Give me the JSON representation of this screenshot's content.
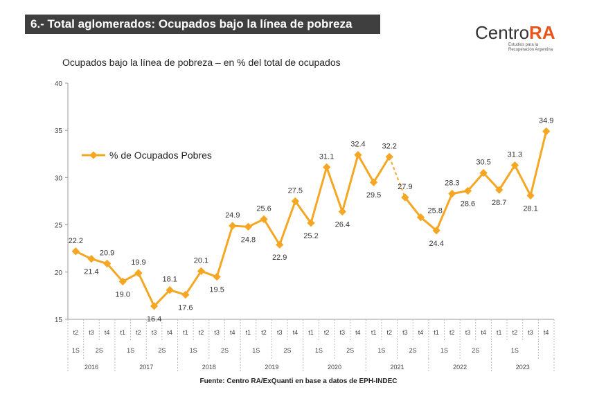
{
  "header": {
    "title": "6.- Total aglomerados: Ocupados bajo la línea de pobreza"
  },
  "logo": {
    "name_part1": "Centro",
    "name_part2": "RA",
    "tagline_line1": "Estudios para la",
    "tagline_line2": "Recuperación Argentina",
    "accent_color": "#e8551a"
  },
  "source": "Fuente: Centro RA/ExQuanti en base a datos de EPH-INDEC",
  "chart_data": {
    "type": "line",
    "title": "Ocupados bajo la línea de pobreza – en % del total de ocupados",
    "xlabel": "",
    "ylabel": "",
    "ylim": [
      15,
      40
    ],
    "yticks": [
      15,
      20,
      25,
      30,
      35,
      40
    ],
    "grid": false,
    "legend_position": "top-left",
    "line_color": "#f5a623",
    "categories": [
      {
        "q": "t2",
        "sem": "1S",
        "year": "2016"
      },
      {
        "q": "t3",
        "sem": "2S",
        "year": "2016"
      },
      {
        "q": "t4",
        "sem": "2S",
        "year": "2016"
      },
      {
        "q": "t1",
        "sem": "1S",
        "year": "2017"
      },
      {
        "q": "t2",
        "sem": "1S",
        "year": "2017"
      },
      {
        "q": "t3",
        "sem": "2S",
        "year": "2017"
      },
      {
        "q": "t4",
        "sem": "2S",
        "year": "2017"
      },
      {
        "q": "t1",
        "sem": "1S",
        "year": "2018"
      },
      {
        "q": "t2",
        "sem": "1S",
        "year": "2018"
      },
      {
        "q": "t3",
        "sem": "2S",
        "year": "2018"
      },
      {
        "q": "t4",
        "sem": "2S",
        "year": "2018"
      },
      {
        "q": "t1",
        "sem": "1S",
        "year": "2019"
      },
      {
        "q": "t2",
        "sem": "1S",
        "year": "2019"
      },
      {
        "q": "t3",
        "sem": "2S",
        "year": "2019"
      },
      {
        "q": "t4",
        "sem": "2S",
        "year": "2019"
      },
      {
        "q": "t1",
        "sem": "1S",
        "year": "2020"
      },
      {
        "q": "t2",
        "sem": "1S",
        "year": "2020"
      },
      {
        "q": "t3",
        "sem": "2S",
        "year": "2020"
      },
      {
        "q": "t4",
        "sem": "2S",
        "year": "2020"
      },
      {
        "q": "t1",
        "sem": "1S",
        "year": "2021"
      },
      {
        "q": "t2",
        "sem": "1S",
        "year": "2021"
      },
      {
        "q": "t3",
        "sem": "2S",
        "year": "2021"
      },
      {
        "q": "t4",
        "sem": "2S",
        "year": "2021"
      },
      {
        "q": "t1",
        "sem": "1S",
        "year": "2022"
      },
      {
        "q": "t2",
        "sem": "1S",
        "year": "2022"
      },
      {
        "q": "t3",
        "sem": "2S",
        "year": "2022"
      },
      {
        "q": "t4",
        "sem": "2S",
        "year": "2022"
      },
      {
        "q": "t1",
        "sem": "1S",
        "year": "2023"
      },
      {
        "q": "t2",
        "sem": "1S",
        "year": "2023"
      },
      {
        "q": "t3",
        "sem": "1S",
        "year": "2023"
      },
      {
        "q": "t4",
        "sem": "",
        "year": "2023"
      }
    ],
    "series": [
      {
        "name": "% de Ocupados Pobres",
        "values": [
          22.2,
          21.4,
          20.9,
          19.0,
          19.9,
          16.4,
          18.1,
          17.6,
          20.1,
          19.5,
          24.9,
          24.8,
          25.6,
          22.9,
          27.5,
          25.2,
          31.1,
          26.4,
          32.4,
          29.5,
          32.2,
          27.9,
          25.8,
          24.4,
          28.3,
          28.6,
          30.5,
          28.7,
          31.3,
          28.1,
          34.9
        ],
        "label_positions": [
          "above",
          "below",
          "above",
          "below",
          "above",
          "below",
          "above",
          "below",
          "above",
          "below",
          "above",
          "below",
          "above",
          "below",
          "above",
          "below",
          "above",
          "below",
          "above",
          "below",
          "above",
          "above",
          "right",
          "below",
          "above",
          "below",
          "above",
          "below",
          "above",
          "below",
          "above"
        ],
        "break_before_index": 21
      }
    ]
  }
}
